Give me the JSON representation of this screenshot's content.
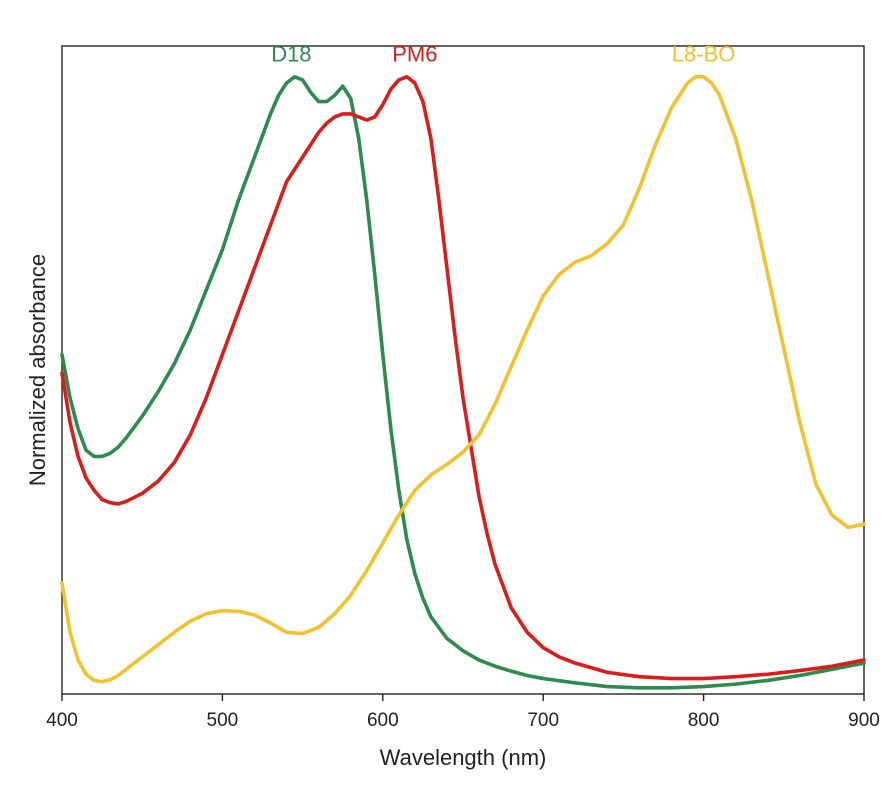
{
  "chart_data": {
    "type": "line",
    "title": "",
    "xlabel": "Wavelength (nm)",
    "ylabel": "Normalized absorbance",
    "xlim": [
      400,
      900
    ],
    "ylim": [
      0,
      1.05
    ],
    "xticks": [
      400,
      500,
      600,
      700,
      800,
      900
    ],
    "xtick_labels": [
      "400",
      "500",
      "600",
      "700",
      "800",
      "900"
    ],
    "yticks_shown": false,
    "grid": false,
    "legend": "inline labels above peaks",
    "series": [
      {
        "name": "D18",
        "color": "#2e8b4e",
        "label_at": [
          543,
          1.01
        ],
        "x": [
          400,
          405,
          410,
          415,
          420,
          425,
          430,
          435,
          440,
          450,
          460,
          470,
          480,
          490,
          500,
          510,
          520,
          530,
          535,
          540,
          545,
          550,
          555,
          560,
          565,
          570,
          575,
          580,
          585,
          590,
          595,
          600,
          605,
          610,
          615,
          620,
          625,
          630,
          640,
          650,
          660,
          670,
          680,
          690,
          700,
          720,
          740,
          760,
          780,
          800,
          820,
          840,
          860,
          880,
          900
        ],
        "y": [
          0.55,
          0.48,
          0.43,
          0.395,
          0.385,
          0.385,
          0.39,
          0.4,
          0.415,
          0.45,
          0.49,
          0.535,
          0.59,
          0.655,
          0.72,
          0.8,
          0.87,
          0.94,
          0.97,
          0.99,
          1.0,
          0.995,
          0.975,
          0.96,
          0.96,
          0.97,
          0.985,
          0.965,
          0.9,
          0.8,
          0.68,
          0.55,
          0.43,
          0.33,
          0.25,
          0.195,
          0.155,
          0.125,
          0.09,
          0.07,
          0.055,
          0.045,
          0.037,
          0.03,
          0.025,
          0.018,
          0.012,
          0.01,
          0.01,
          0.012,
          0.016,
          0.022,
          0.03,
          0.04,
          0.05
        ]
      },
      {
        "name": "PM6",
        "color": "#dd1c1a",
        "label_at": [
          620,
          1.01
        ],
        "x": [
          400,
          405,
          410,
          415,
          420,
          425,
          430,
          435,
          440,
          450,
          460,
          470,
          480,
          490,
          500,
          510,
          520,
          530,
          540,
          550,
          560,
          565,
          570,
          575,
          580,
          585,
          590,
          595,
          600,
          605,
          610,
          615,
          620,
          625,
          630,
          635,
          640,
          645,
          650,
          655,
          660,
          665,
          670,
          680,
          690,
          700,
          710,
          720,
          740,
          760,
          780,
          800,
          820,
          840,
          860,
          880,
          900
        ],
        "y": [
          0.52,
          0.44,
          0.385,
          0.35,
          0.33,
          0.315,
          0.31,
          0.308,
          0.312,
          0.325,
          0.345,
          0.375,
          0.42,
          0.48,
          0.55,
          0.62,
          0.69,
          0.76,
          0.83,
          0.87,
          0.91,
          0.925,
          0.935,
          0.94,
          0.94,
          0.935,
          0.93,
          0.935,
          0.955,
          0.98,
          0.995,
          1.0,
          0.99,
          0.96,
          0.9,
          0.8,
          0.69,
          0.58,
          0.48,
          0.4,
          0.32,
          0.26,
          0.21,
          0.14,
          0.1,
          0.075,
          0.06,
          0.05,
          0.035,
          0.028,
          0.025,
          0.025,
          0.028,
          0.032,
          0.038,
          0.045,
          0.055
        ]
      },
      {
        "name": "L8-BO",
        "color": "#f2c12e",
        "label_at": [
          800,
          1.01
        ],
        "x": [
          400,
          405,
          410,
          415,
          420,
          425,
          430,
          435,
          440,
          450,
          460,
          470,
          480,
          490,
          500,
          510,
          520,
          530,
          540,
          550,
          560,
          570,
          580,
          590,
          600,
          610,
          620,
          630,
          640,
          650,
          660,
          670,
          680,
          690,
          700,
          710,
          720,
          730,
          740,
          750,
          760,
          770,
          780,
          790,
          795,
          800,
          805,
          810,
          820,
          830,
          840,
          850,
          860,
          870,
          880,
          890,
          900
        ],
        "y": [
          0.18,
          0.1,
          0.055,
          0.032,
          0.022,
          0.02,
          0.023,
          0.03,
          0.04,
          0.06,
          0.08,
          0.1,
          0.118,
          0.13,
          0.135,
          0.134,
          0.128,
          0.115,
          0.1,
          0.098,
          0.108,
          0.13,
          0.16,
          0.2,
          0.245,
          0.29,
          0.33,
          0.355,
          0.372,
          0.392,
          0.42,
          0.47,
          0.53,
          0.59,
          0.645,
          0.68,
          0.7,
          0.71,
          0.73,
          0.76,
          0.82,
          0.89,
          0.95,
          0.99,
          1.0,
          1.0,
          0.99,
          0.97,
          0.9,
          0.8,
          0.68,
          0.56,
          0.44,
          0.34,
          0.29,
          0.27,
          0.275
        ]
      }
    ]
  }
}
